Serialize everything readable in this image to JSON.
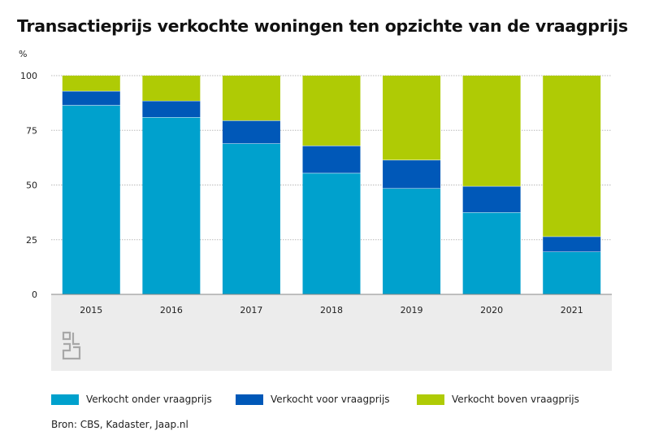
{
  "title": "Transactieprijs verkochte woningen ten opzichte van de vraagprijs",
  "unit_label": "%",
  "source": "Bron: CBS, Kadaster, Jaap.nl",
  "colors": {
    "onder": "#00a1cd",
    "voor": "#0058b8",
    "boven": "#afcb05",
    "grid": "#b8b8b8",
    "footer_bg": "#ececec",
    "logo": "#a8a8a8"
  },
  "chart_data": {
    "type": "bar",
    "stacked": true,
    "title": "Transactieprijs verkochte woningen ten opzichte van de vraagprijs",
    "ylabel": "%",
    "xlabel": "",
    "ylim": [
      0,
      100
    ],
    "yticks": [
      "0",
      "25",
      "50",
      "75",
      "100"
    ],
    "ytick_values": [
      0,
      25,
      50,
      75,
      100
    ],
    "categories": [
      "2015",
      "2016",
      "2017",
      "2018",
      "2019",
      "2020",
      "2021"
    ],
    "series": [
      {
        "name": "Verkocht onder vraagprijs",
        "key": "onder",
        "values": [
          86.5,
          81,
          69,
          55.5,
          48.5,
          37.5,
          19.5
        ]
      },
      {
        "name": "Verkocht voor vraagprijs",
        "key": "voor",
        "values": [
          6.5,
          7.5,
          10.5,
          12.5,
          13,
          12,
          7
        ]
      },
      {
        "name": "Verkocht boven vraagprijs",
        "key": "boven",
        "values": [
          7,
          11.5,
          20.5,
          32,
          38.5,
          50.5,
          73.5
        ]
      }
    ],
    "legend_position": "bottom"
  }
}
